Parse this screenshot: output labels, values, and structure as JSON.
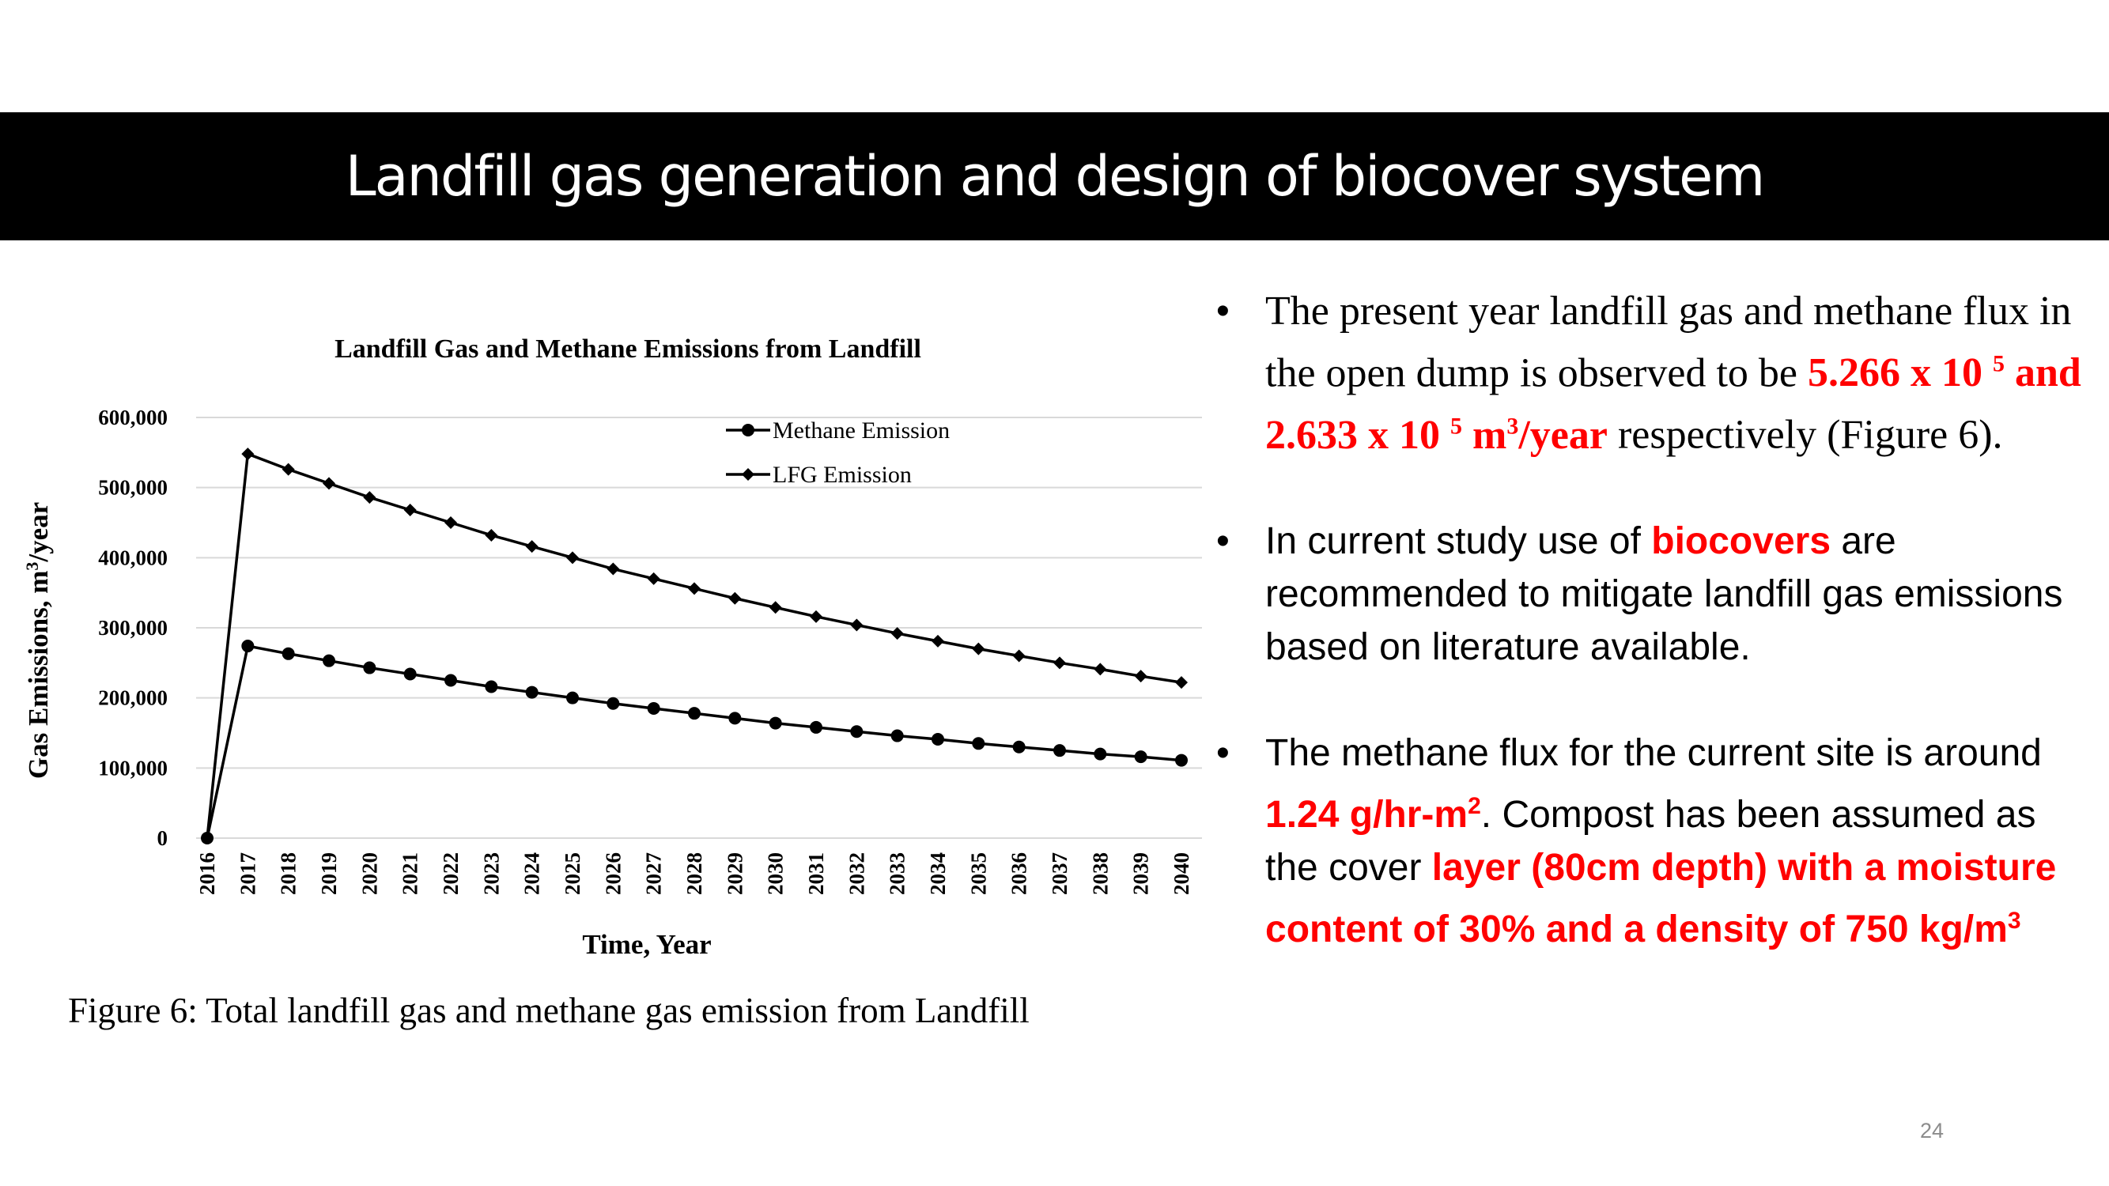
{
  "slide": {
    "title": "Landfill gas generation and design of biocover system",
    "page_number": "24"
  },
  "figure": {
    "caption": "Figure 6: Total landfill gas and methane gas emission from Landfill"
  },
  "bullets": {
    "b1": {
      "t1": "The present year landfill gas and methane flux in the open dump is observed to be ",
      "r1": "5.266 x 10 ",
      "r1_exp": "5",
      "r2": " and 2.633 x 10 ",
      "r2_exp": "5",
      "r3": " m",
      "r3_exp": "3",
      "r4": "/year",
      "t2": " respectively (Figure 6)."
    },
    "b2": {
      "t1": "In current study use of ",
      "r1": "biocovers",
      "t2": " are recommended to mitigate landfill gas emissions based on literature available."
    },
    "b3": {
      "t1": "The methane flux for the current site is around ",
      "r1": "1.24 g/hr-m",
      "r1_exp": "2",
      "t2": ". Compost has been assumed as the cover ",
      "r2": "layer (80cm depth) with a moisture content of 30% and a density of 750 kg/m",
      "r2_exp": "3"
    }
  },
  "colors": {
    "title_bar": "#000000",
    "title_text": "#ffffff",
    "highlight": "#ff0000",
    "series_line": "#000000",
    "gridline": "#d9d9d9"
  },
  "chart_data": {
    "type": "line",
    "title": "Landfill Gas  and Methane Emissions from Landfill",
    "xlabel": "Time, Year",
    "ylabel": "Gas Emissions, m",
    "ylabel_exp": "3",
    "ylabel_suffix": "/year",
    "ylim": [
      0,
      600000
    ],
    "yticks": [
      0,
      100000,
      200000,
      300000,
      400000,
      500000,
      600000
    ],
    "ytick_labels": [
      "0",
      "100,000",
      "200,000",
      "300,000",
      "400,000",
      "500,000",
      "600,000"
    ],
    "grid": true,
    "legend_position": "top-right",
    "x": [
      "2016",
      "2017",
      "2018",
      "2019",
      "2020",
      "2021",
      "2022",
      "2023",
      "2024",
      "2025",
      "2026",
      "2027",
      "2028",
      "2029",
      "2030",
      "2031",
      "2032",
      "2033",
      "2034",
      "2035",
      "2036",
      "2037",
      "2038",
      "2039",
      "2040"
    ],
    "series": [
      {
        "name": "Methane Emission",
        "marker": "circle",
        "values": [
          0,
          274000,
          263000,
          253000,
          243000,
          234000,
          225000,
          216000,
          208000,
          200000,
          192000,
          185000,
          178000,
          171000,
          164000,
          158000,
          152000,
          146000,
          141000,
          135000,
          130000,
          125000,
          120000,
          116000,
          111000
        ]
      },
      {
        "name": "LFG Emission",
        "marker": "diamond",
        "values": [
          0,
          548000,
          526000,
          506000,
          486000,
          468000,
          450000,
          432000,
          416000,
          400000,
          384000,
          370000,
          356000,
          342000,
          329000,
          316000,
          304000,
          292000,
          281000,
          270000,
          260000,
          250000,
          241000,
          231000,
          222000
        ]
      }
    ]
  }
}
